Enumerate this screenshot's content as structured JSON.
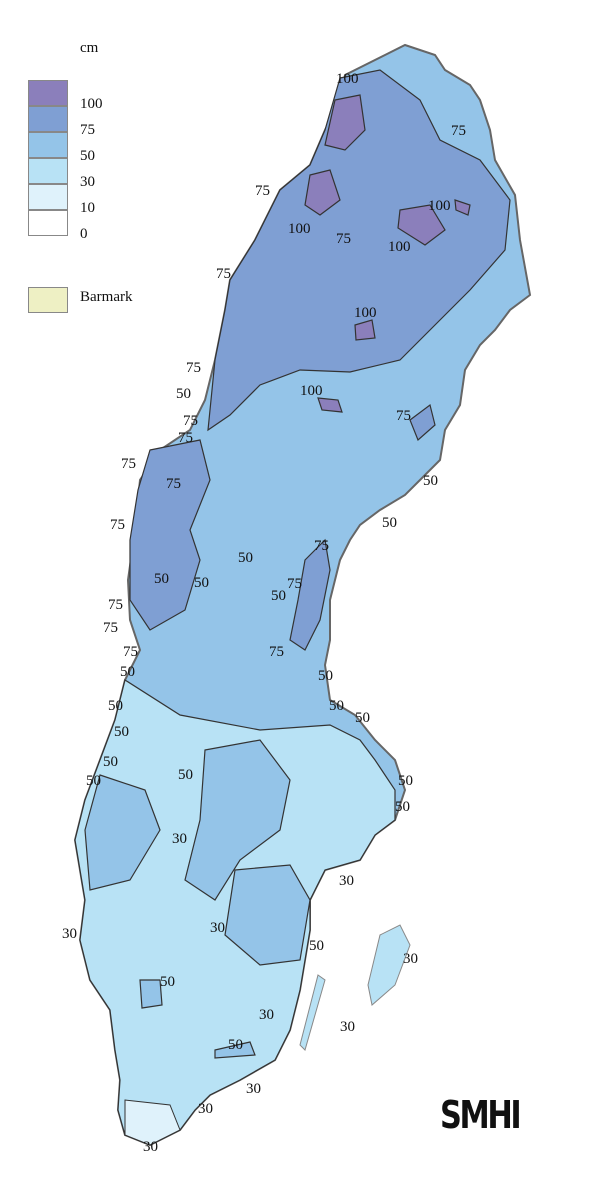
{
  "legend": {
    "unit": "cm",
    "classes": [
      {
        "label": "100",
        "color": "#8b7fbb"
      },
      {
        "label": "75",
        "color": "#7f9fd3"
      },
      {
        "label": "50",
        "color": "#94c4e8"
      },
      {
        "label": "30",
        "color": "#b8e2f5"
      },
      {
        "label": "10",
        "color": "#dff2fb"
      },
      {
        "label": "0",
        "color": "#ffffff"
      }
    ],
    "barmark": {
      "label": "Barmark",
      "color": "#eef0c4"
    }
  },
  "contour_labels": [
    "100",
    "75",
    "75",
    "100",
    "75",
    "100",
    "100",
    "75",
    "100",
    "75",
    "50",
    "100",
    "75",
    "75",
    "75",
    "75",
    "75",
    "50",
    "75",
    "50",
    "50",
    "50",
    "50",
    "75",
    "75",
    "50",
    "75",
    "75",
    "75",
    "75",
    "50",
    "50",
    "50",
    "50",
    "50",
    "50",
    "50",
    "50",
    "50",
    "50",
    "50",
    "30",
    "30",
    "30",
    "30",
    "50",
    "30",
    "50",
    "30",
    "30",
    "50",
    "30",
    "30",
    "30"
  ],
  "logo": "SMHI"
}
